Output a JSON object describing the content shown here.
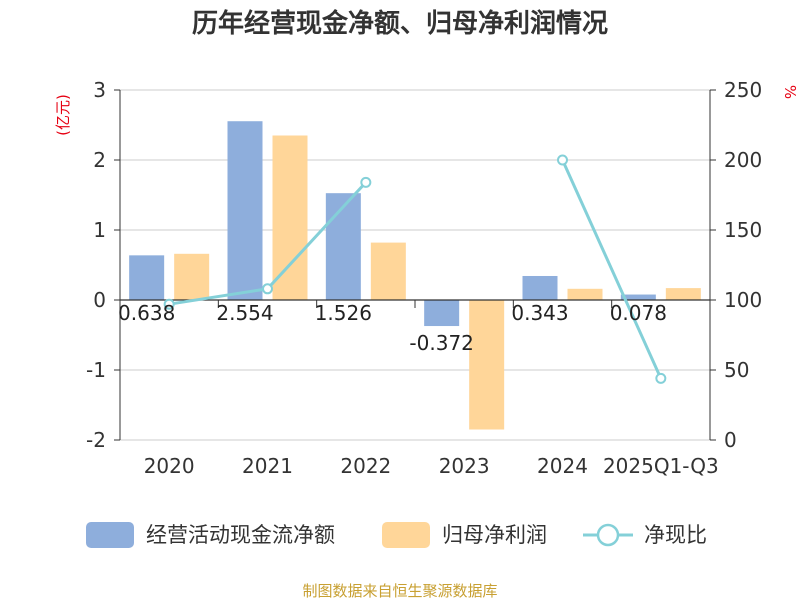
{
  "chart_data": {
    "type": "bar",
    "title": "历年经营现金净额、归母净利润情况",
    "categories": [
      "2020",
      "2021",
      "2022",
      "2023",
      "2024",
      "2025Q1-Q3"
    ],
    "series": [
      {
        "name": "经营活动现金流净额",
        "type": "bar",
        "axis": "left",
        "color": "#8eaedc",
        "values": [
          0.638,
          2.554,
          1.526,
          -0.372,
          0.343,
          0.078
        ],
        "data_labels": [
          "0.638",
          "2.554",
          "1.526",
          "-0.372",
          "0.343",
          "0.078"
        ]
      },
      {
        "name": "归母净利润",
        "type": "bar",
        "axis": "left",
        "color": "#ffd699",
        "values": [
          0.66,
          2.35,
          0.82,
          -1.85,
          0.16,
          0.17
        ]
      },
      {
        "name": "净现比",
        "type": "line",
        "axis": "right",
        "color": "#84d0d8",
        "values": [
          97,
          108,
          184,
          null,
          200,
          44
        ]
      }
    ],
    "left_axis": {
      "unit": "(亿元)",
      "ylim": [
        -2,
        3
      ],
      "ticks": [
        "-2",
        "-1",
        "0",
        "1",
        "2",
        "3"
      ]
    },
    "right_axis": {
      "unit": "%",
      "ylim": [
        0,
        250
      ],
      "ticks": [
        "0",
        "50",
        "100",
        "150",
        "200",
        "250"
      ]
    },
    "grid": true,
    "legend_position": "bottom"
  },
  "source": "制图数据来自恒生聚源数据库"
}
